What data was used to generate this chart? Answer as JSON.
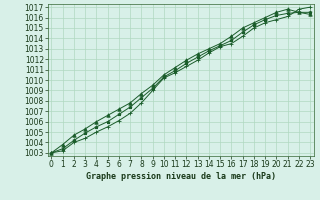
{
  "title": "Graphe pression niveau de la mer (hPa)",
  "bg_color": "#d8f0e8",
  "plot_bg_color": "#d8f0e8",
  "grid_color": "#b0d8c0",
  "line_color": "#1a5c2a",
  "marker_color": "#1a5c2a",
  "ylim_min": 1003,
  "ylim_max": 1017,
  "xlim_min": 0,
  "xlim_max": 23,
  "yticks": [
    1003,
    1004,
    1005,
    1006,
    1007,
    1008,
    1009,
    1010,
    1011,
    1012,
    1013,
    1014,
    1015,
    1016,
    1017
  ],
  "xticks": [
    0,
    1,
    2,
    3,
    4,
    5,
    6,
    7,
    8,
    9,
    10,
    11,
    12,
    13,
    14,
    15,
    16,
    17,
    18,
    19,
    20,
    21,
    22,
    23
  ],
  "series": [
    [
      1003.0,
      1003.2,
      1004.0,
      1004.4,
      1005.0,
      1005.5,
      1006.1,
      1006.8,
      1007.8,
      1009.0,
      1010.2,
      1010.7,
      1011.3,
      1011.9,
      1012.6,
      1013.2,
      1013.5,
      1014.2,
      1015.0,
      1015.5,
      1015.8,
      1016.1,
      1016.8,
      1017.0
    ],
    [
      1003.0,
      1003.4,
      1004.2,
      1004.9,
      1005.5,
      1006.0,
      1006.7,
      1007.4,
      1008.3,
      1009.2,
      1010.3,
      1010.9,
      1011.6,
      1012.2,
      1012.8,
      1013.3,
      1013.8,
      1014.6,
      1015.3,
      1015.8,
      1016.2,
      1016.4,
      1016.5,
      1016.5
    ],
    [
      1003.0,
      1003.8,
      1004.7,
      1005.3,
      1006.0,
      1006.6,
      1007.2,
      1007.8,
      1008.7,
      1009.5,
      1010.5,
      1011.2,
      1011.9,
      1012.5,
      1013.0,
      1013.5,
      1014.2,
      1015.0,
      1015.5,
      1016.0,
      1016.5,
      1016.8,
      1016.5,
      1016.3
    ]
  ],
  "title_fontsize": 6,
  "tick_fontsize": 5.5,
  "linewidth": 0.7,
  "markersize": 2.5
}
